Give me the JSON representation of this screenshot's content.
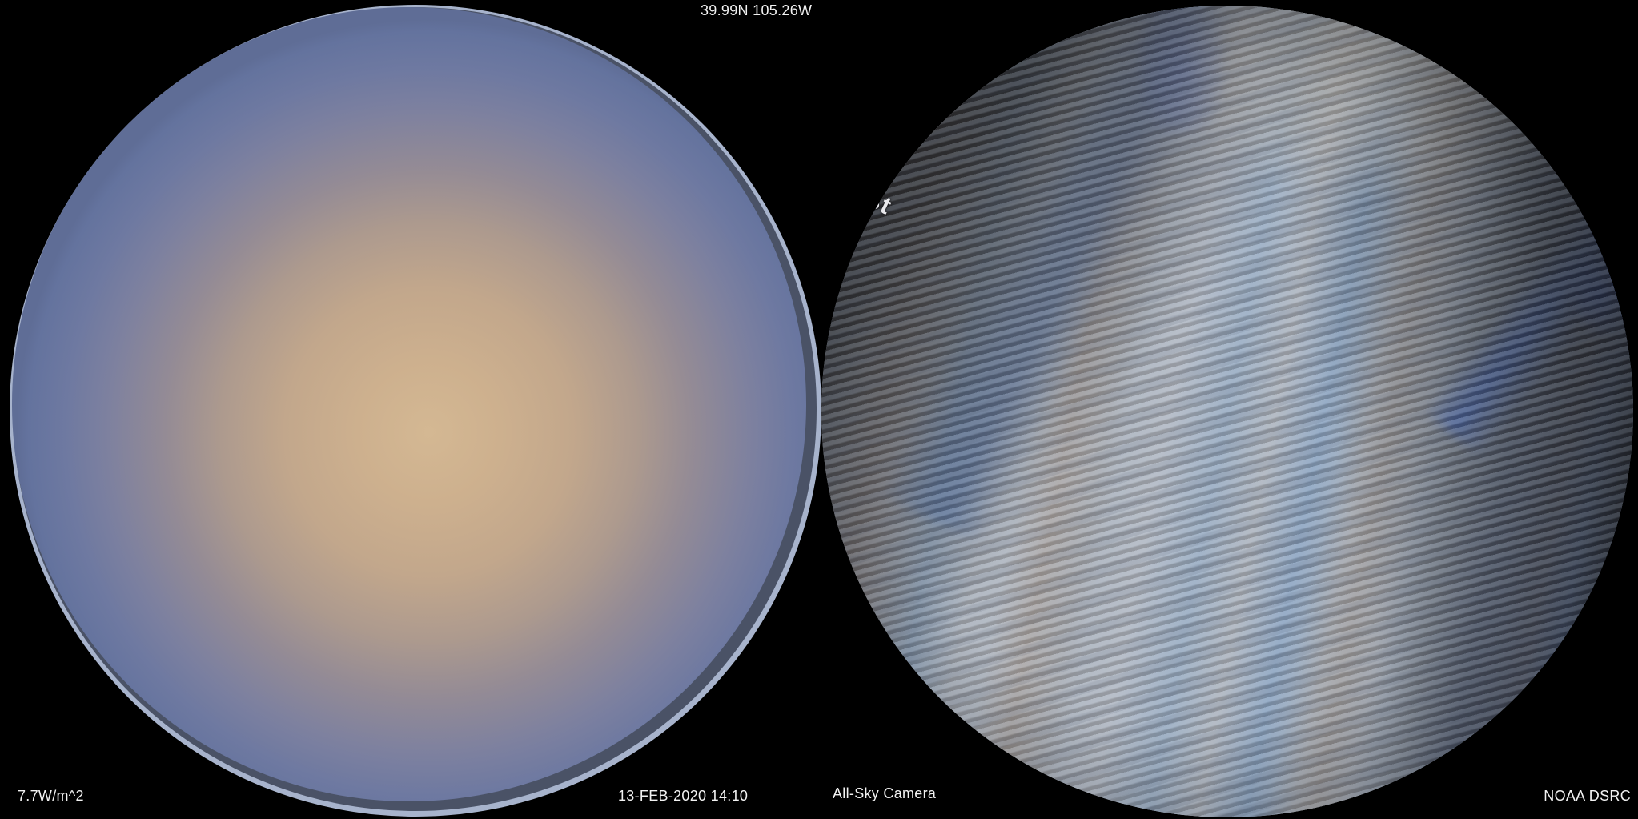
{
  "header": {
    "coordinates": "39.99N 105.26W"
  },
  "footer": {
    "irradiance": "7.7W/m^2",
    "datetime": "13-FEB-2020 14:10",
    "camera_label": "All-Sky Camera",
    "credit": "NOAA DSRC"
  },
  "left_view": {
    "description": "hazy sky fisheye with diffuse sun glow",
    "sun_glow_color": "#cdb08e",
    "sky_edge_color": "#64739e",
    "rim_highlight_color": "#a7b3cc",
    "rim_shadow_color": "#4a5266"
  },
  "right_view": {
    "description": "all-sky dome camera with diagonal scanline interference",
    "dome_label_fragment": "st",
    "stripe_light_color": "#aeb6c2",
    "stripe_dark_color": "#8e8781",
    "band_blue_color": "#4a77b0",
    "accent_blue_color": "#2b55c8",
    "dark_corner_color": "#14181f"
  },
  "background_color": "#000000"
}
